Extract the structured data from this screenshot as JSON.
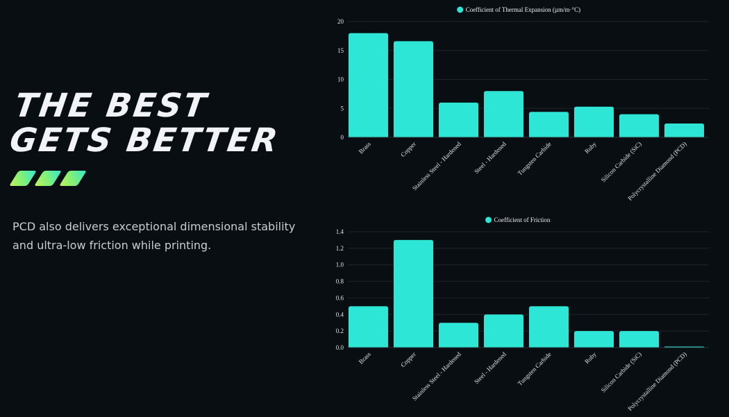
{
  "hero": {
    "headline_line1": "THE BEST",
    "headline_line2": "GETS BETTER",
    "description": "PCD also delivers exceptional dimensional stability and ultra-low friction while printing."
  },
  "colors": {
    "background": "#080e12",
    "bar": "#2ee6d6",
    "gridline": "#1e2529",
    "accent_gradient_start": "#c4f25a",
    "accent_gradient_end": "#2ee6d6"
  },
  "chart_data": [
    {
      "type": "bar",
      "title": "",
      "legend": [
        "Coefficient of Thermal Expansion (µm/m·°C)"
      ],
      "legend_position": "top",
      "categories": [
        "Brass",
        "Copper",
        "Stainless Steel - Hardened",
        "Steel - Hardened",
        "Tungsten Carbide",
        "Ruby",
        "Silicon Carbide (SiC)",
        "Polycrystalline Diamond (PCD)"
      ],
      "values": [
        18,
        16.6,
        6,
        8,
        4.4,
        5.3,
        4,
        2.4
      ],
      "yticks": [
        0,
        5,
        10,
        15,
        20
      ],
      "ylim": [
        0,
        20
      ],
      "xlabel": "",
      "ylabel": "",
      "grid": true
    },
    {
      "type": "bar",
      "title": "",
      "legend": [
        "Coefficient of Friction"
      ],
      "legend_position": "top",
      "categories": [
        "Brass",
        "Copper",
        "Stainless Steel - Hardened",
        "Steel - Hardened",
        "Tungsten Carbide",
        "Ruby",
        "Silicon Carbide (SiC)",
        "Polycrystalline Diamond (PCD)"
      ],
      "values": [
        0.5,
        1.3,
        0.3,
        0.4,
        0.5,
        0.2,
        0.2,
        0.01
      ],
      "yticks": [
        "0.0",
        "0.2",
        "0.4",
        "0.6",
        "0.8",
        "1.0",
        "1.2",
        "1.4"
      ],
      "ylim": [
        0,
        1.4
      ],
      "xlabel": "",
      "ylabel": "",
      "grid": true
    }
  ]
}
